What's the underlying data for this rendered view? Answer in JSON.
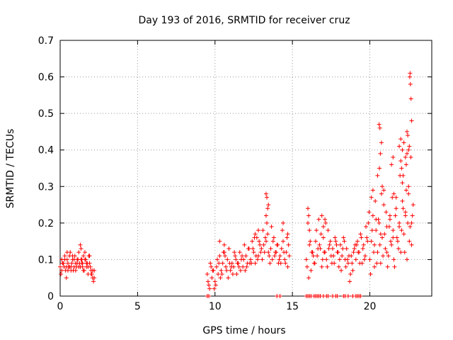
{
  "chart_data": {
    "type": "scatter",
    "title": "Day 193 of 2016, SRMTID for receiver cruz",
    "xlabel": "GPS time / hours",
    "ylabel": "SRMTID / TECUs",
    "xlim": [
      0,
      24
    ],
    "ylim": [
      0,
      0.7
    ],
    "x_ticks": [
      "0",
      "5",
      "10",
      "15",
      "20"
    ],
    "y_ticks": [
      "0",
      "0.1",
      "0.2",
      "0.3",
      "0.4",
      "0.5",
      "0.6",
      "0.7"
    ],
    "grid": true,
    "marker": "+",
    "color": "#ff0000",
    "series": [
      {
        "name": "SRMTID",
        "x": [
          0.0,
          0.1,
          0.2,
          0.3,
          0.4,
          0.5,
          0.6,
          0.7,
          0.8,
          0.9,
          1.0,
          1.1,
          1.2,
          1.3,
          1.4,
          1.5,
          1.6,
          1.7,
          1.8,
          1.9,
          2.0,
          2.1,
          2.2,
          0.05,
          0.15,
          0.25,
          0.35,
          0.45,
          0.55,
          0.65,
          0.75,
          0.85,
          0.95,
          1.05,
          1.15,
          1.25,
          1.35,
          1.45,
          1.55,
          1.65,
          1.75,
          1.85,
          1.95,
          2.05,
          2.15,
          0.1,
          0.3,
          0.5,
          0.7,
          0.9,
          1.1,
          1.3,
          1.5,
          1.7,
          1.9,
          2.1,
          0.2,
          0.4,
          0.6,
          0.8,
          1.0,
          1.2,
          1.4,
          1.6,
          1.8,
          2.0,
          2.2,
          0.45,
          1.35,
          1.45,
          9.5,
          9.6,
          9.7,
          9.8,
          9.9,
          10.0,
          10.1,
          10.2,
          10.3,
          10.4,
          10.5,
          10.6,
          10.7,
          10.8,
          10.9,
          11.0,
          11.1,
          11.2,
          11.3,
          11.4,
          11.5,
          11.6,
          11.7,
          11.8,
          11.9,
          12.0,
          12.1,
          12.2,
          12.3,
          12.4,
          12.5,
          12.6,
          12.7,
          12.8,
          12.9,
          13.0,
          13.1,
          13.2,
          13.3,
          13.4,
          13.5,
          13.6,
          13.7,
          13.8,
          13.9,
          14.0,
          14.1,
          14.2,
          14.3,
          14.4,
          14.5,
          14.6,
          14.7,
          14.8,
          9.55,
          9.75,
          9.95,
          10.15,
          10.35,
          10.55,
          10.75,
          10.95,
          11.15,
          11.35,
          11.55,
          11.75,
          11.95,
          12.15,
          12.35,
          12.55,
          12.75,
          12.95,
          13.15,
          13.35,
          13.55,
          13.75,
          13.95,
          14.15,
          14.35,
          14.55,
          14.75,
          9.65,
          9.85,
          10.05,
          10.25,
          10.45,
          10.65,
          10.85,
          11.05,
          11.25,
          11.45,
          11.65,
          11.85,
          12.05,
          12.25,
          12.45,
          12.65,
          12.85,
          13.05,
          13.25,
          13.45,
          13.65,
          13.85,
          14.05,
          14.25,
          14.45,
          14.65,
          13.3,
          13.35,
          13.4,
          13.3,
          13.45,
          10.3,
          10.6,
          10.9,
          12.8,
          12.6,
          14.4,
          14.7,
          15.9,
          16.0,
          16.1,
          16.2,
          16.3,
          16.4,
          16.5,
          16.6,
          16.7,
          16.8,
          16.9,
          17.0,
          17.1,
          17.2,
          17.3,
          17.4,
          17.5,
          17.6,
          17.7,
          17.8,
          17.9,
          18.0,
          18.1,
          18.2,
          18.3,
          18.4,
          18.5,
          18.6,
          18.7,
          18.8,
          18.9,
          19.0,
          19.1,
          19.2,
          19.3,
          19.4,
          19.5,
          19.6,
          19.7,
          19.8,
          19.9,
          15.95,
          16.15,
          16.35,
          16.55,
          16.75,
          16.95,
          17.15,
          17.35,
          17.55,
          17.75,
          17.95,
          18.15,
          18.35,
          18.55,
          18.75,
          18.95,
          19.15,
          19.35,
          19.55,
          19.75,
          19.95,
          16.05,
          16.25,
          16.45,
          16.65,
          16.85,
          17.05,
          17.25,
          17.45,
          17.65,
          17.85,
          18.05,
          18.25,
          18.45,
          18.65,
          18.85,
          19.05,
          19.25,
          19.45,
          19.65,
          19.85,
          16.0,
          16.05,
          16.1,
          16.9,
          17.0,
          17.1,
          20.0,
          20.1,
          20.2,
          20.3,
          20.4,
          20.5,
          20.6,
          20.7,
          20.8,
          20.9,
          21.0,
          21.1,
          21.2,
          21.3,
          21.4,
          21.5,
          21.6,
          21.7,
          21.8,
          21.9,
          22.0,
          22.1,
          22.2,
          22.3,
          22.4,
          22.5,
          22.6,
          22.7,
          22.8,
          20.05,
          20.15,
          20.25,
          20.35,
          20.45,
          20.55,
          20.65,
          20.75,
          20.85,
          20.95,
          21.05,
          21.15,
          21.25,
          21.35,
          21.45,
          21.55,
          21.65,
          21.75,
          21.85,
          21.95,
          22.05,
          22.15,
          22.25,
          22.35,
          22.45,
          22.55,
          22.65,
          22.75,
          20.1,
          20.3,
          20.5,
          20.7,
          20.9,
          21.1,
          21.3,
          21.5,
          21.7,
          21.9,
          22.1,
          22.3,
          22.5,
          22.7,
          20.6,
          20.65,
          20.62,
          20.68,
          20.75,
          20.8,
          21.4,
          21.5,
          21.55,
          21.9,
          22.0,
          22.05,
          22.1,
          22.15,
          22.2,
          22.3,
          22.35,
          22.4,
          22.45,
          22.5,
          22.55,
          22.6,
          22.62,
          22.58,
          22.66,
          22.7,
          22.4,
          22.0,
          20.2,
          20.4,
          9.5,
          9.6,
          14.0,
          14.2,
          15.9,
          16.0,
          16.1,
          16.2,
          16.4,
          16.5,
          16.6,
          16.7,
          16.8,
          17.0,
          17.2,
          17.3,
          17.6,
          17.8,
          17.9,
          18.3,
          18.4,
          18.6,
          18.9,
          19.1,
          19.2,
          19.3,
          19.4
        ],
        "y": [
          0.08,
          0.07,
          0.09,
          0.1,
          0.08,
          0.09,
          0.11,
          0.07,
          0.1,
          0.08,
          0.09,
          0.1,
          0.12,
          0.08,
          0.09,
          0.07,
          0.1,
          0.09,
          0.08,
          0.11,
          0.06,
          0.05,
          0.07,
          0.06,
          0.09,
          0.08,
          0.07,
          0.1,
          0.08,
          0.12,
          0.09,
          0.07,
          0.11,
          0.08,
          0.1,
          0.09,
          0.13,
          0.08,
          0.07,
          0.1,
          0.09,
          0.11,
          0.08,
          0.06,
          0.04,
          0.1,
          0.11,
          0.07,
          0.08,
          0.1,
          0.09,
          0.14,
          0.11,
          0.08,
          0.09,
          0.07,
          0.09,
          0.05,
          0.08,
          0.11,
          0.07,
          0.08,
          0.1,
          0.12,
          0.06,
          0.07,
          0.05,
          0.12,
          0.1,
          0.09,
          0.06,
          0.03,
          0.09,
          0.05,
          0.07,
          0.04,
          0.08,
          0.06,
          0.11,
          0.07,
          0.09,
          0.12,
          0.08,
          0.1,
          0.13,
          0.07,
          0.09,
          0.08,
          0.11,
          0.06,
          0.09,
          0.12,
          0.1,
          0.08,
          0.14,
          0.11,
          0.09,
          0.13,
          0.1,
          0.15,
          0.12,
          0.09,
          0.16,
          0.11,
          0.14,
          0.13,
          0.18,
          0.12,
          0.15,
          0.17,
          0.11,
          0.13,
          0.1,
          0.16,
          0.12,
          0.14,
          0.09,
          0.11,
          0.13,
          0.15,
          0.1,
          0.12,
          0.08,
          0.11,
          0.04,
          0.08,
          0.02,
          0.1,
          0.05,
          0.12,
          0.07,
          0.09,
          0.06,
          0.1,
          0.08,
          0.11,
          0.07,
          0.13,
          0.09,
          0.16,
          0.1,
          0.12,
          0.14,
          0.2,
          0.09,
          0.15,
          0.12,
          0.1,
          0.18,
          0.09,
          0.14,
          0.02,
          0.07,
          0.03,
          0.09,
          0.06,
          0.11,
          0.05,
          0.08,
          0.12,
          0.09,
          0.07,
          0.1,
          0.08,
          0.09,
          0.13,
          0.11,
          0.15,
          0.1,
          0.16,
          0.12,
          0.19,
          0.11,
          0.14,
          0.09,
          0.12,
          0.16,
          0.28,
          0.27,
          0.24,
          0.22,
          0.25,
          0.15,
          0.14,
          0.13,
          0.18,
          0.17,
          0.2,
          0.17,
          0.1,
          0.2,
          0.14,
          0.07,
          0.12,
          0.09,
          0.15,
          0.11,
          0.21,
          0.13,
          0.08,
          0.16,
          0.12,
          0.1,
          0.18,
          0.14,
          0.11,
          0.13,
          0.09,
          0.15,
          0.12,
          0.08,
          0.14,
          0.11,
          0.16,
          0.1,
          0.13,
          0.09,
          0.04,
          0.11,
          0.07,
          0.13,
          0.1,
          0.15,
          0.12,
          0.17,
          0.09,
          0.14,
          0.11,
          0.16,
          0.2,
          0.08,
          0.15,
          0.11,
          0.18,
          0.14,
          0.1,
          0.2,
          0.13,
          0.09,
          0.16,
          0.12,
          0.07,
          0.15,
          0.1,
          0.06,
          0.12,
          0.14,
          0.09,
          0.13,
          0.19,
          0.23,
          0.05,
          0.12,
          0.09,
          0.13,
          0.17,
          0.12,
          0.08,
          0.15,
          0.11,
          0.14,
          0.1,
          0.13,
          0.08,
          0.11,
          0.09,
          0.14,
          0.12,
          0.16,
          0.1,
          0.15,
          0.24,
          0.22,
          0.18,
          0.22,
          0.19,
          0.21,
          0.1,
          0.15,
          0.22,
          0.08,
          0.18,
          0.12,
          0.2,
          0.09,
          0.16,
          0.25,
          0.13,
          0.19,
          0.11,
          0.22,
          0.14,
          0.18,
          0.08,
          0.24,
          0.15,
          0.2,
          0.12,
          0.26,
          0.17,
          0.22,
          0.1,
          0.3,
          0.19,
          0.14,
          0.25,
          0.06,
          0.18,
          0.12,
          0.26,
          0.09,
          0.21,
          0.14,
          0.28,
          0.11,
          0.17,
          0.23,
          0.08,
          0.19,
          0.15,
          0.27,
          0.1,
          0.22,
          0.16,
          0.13,
          0.33,
          0.18,
          0.24,
          0.12,
          0.29,
          0.2,
          0.15,
          0.38,
          0.22,
          0.27,
          0.14,
          0.33,
          0.17,
          0.29,
          0.12,
          0.21,
          0.16,
          0.27,
          0.19,
          0.31,
          0.23,
          0.28,
          0.2,
          0.47,
          0.46,
          0.35,
          0.39,
          0.42,
          0.3,
          0.36,
          0.38,
          0.28,
          0.41,
          0.43,
          0.35,
          0.4,
          0.33,
          0.42,
          0.38,
          0.36,
          0.39,
          0.44,
          0.4,
          0.41,
          0.61,
          0.58,
          0.6,
          0.54,
          0.48,
          0.45,
          0.37,
          0.29,
          0.21,
          0.0,
          0.0,
          0.0,
          0.0,
          0.0,
          0.0,
          0.0,
          0.0,
          0.0,
          0.0,
          0.0,
          0.0,
          0.0,
          0.0,
          0.0,
          0.0,
          0.0,
          0.0,
          0.0,
          0.0,
          0.0,
          0.0,
          0.0,
          0.0,
          0.0,
          0.0,
          0.0
        ]
      }
    ]
  }
}
